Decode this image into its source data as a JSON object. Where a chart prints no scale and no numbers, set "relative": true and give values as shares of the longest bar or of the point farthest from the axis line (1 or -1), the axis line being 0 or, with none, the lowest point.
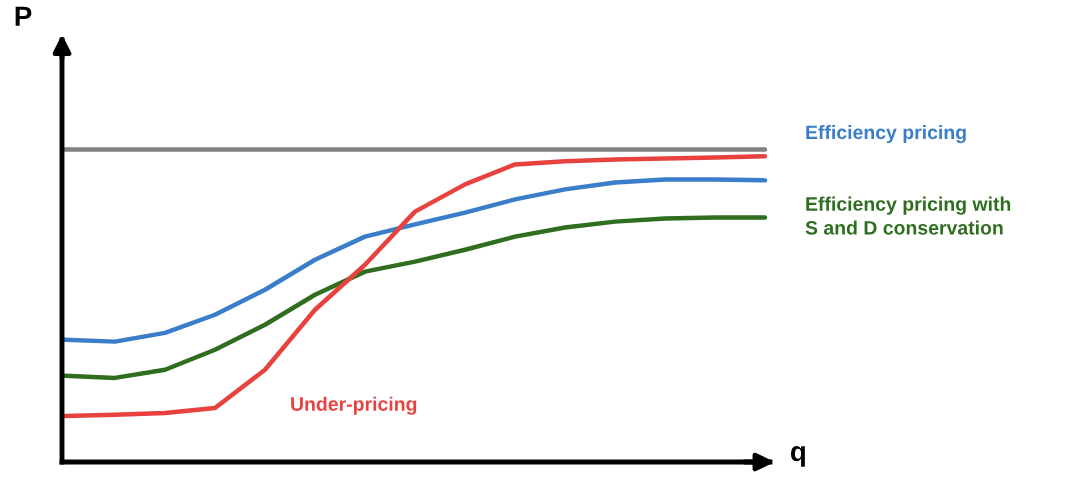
{
  "chart_data": {
    "type": "line",
    "relative": true,
    "xlabel": "q",
    "ylabel": "P",
    "grid": false,
    "legend": false,
    "marker": "none",
    "line_style": "solid",
    "categories": [
      null,
      null,
      null,
      null,
      null,
      null,
      null,
      null,
      null,
      null,
      null,
      null,
      null,
      null,
      null
    ],
    "series": [
      {
        "color": "#808080",
        "values": [
          1,
          1,
          1,
          1,
          1,
          1,
          1,
          1,
          1,
          1,
          1,
          1,
          1,
          1,
          1
        ]
      },
      {
        "name": "Efficiency pricing",
        "color": "#3a7dc9",
        "values": [
          0.391,
          0.385,
          0.413,
          0.471,
          0.551,
          0.647,
          0.721,
          0.76,
          0.798,
          0.84,
          0.872,
          0.894,
          0.904,
          0.904,
          0.901
        ]
      },
      {
        "name": "Efficiency pricing with\nS and D conservation",
        "color": "#2e6e1e",
        "values": [
          0.276,
          0.269,
          0.295,
          0.359,
          0.439,
          0.535,
          0.609,
          0.641,
          0.679,
          0.721,
          0.75,
          0.769,
          0.779,
          0.782,
          0.782
        ]
      },
      {
        "name": "Under-pricing",
        "color": "#e8423f",
        "values": [
          0.147,
          0.151,
          0.157,
          0.173,
          0.295,
          0.487,
          0.631,
          0.801,
          0.888,
          0.952,
          0.962,
          0.968,
          0.971,
          0.974,
          0.978
        ]
      }
    ]
  }
}
